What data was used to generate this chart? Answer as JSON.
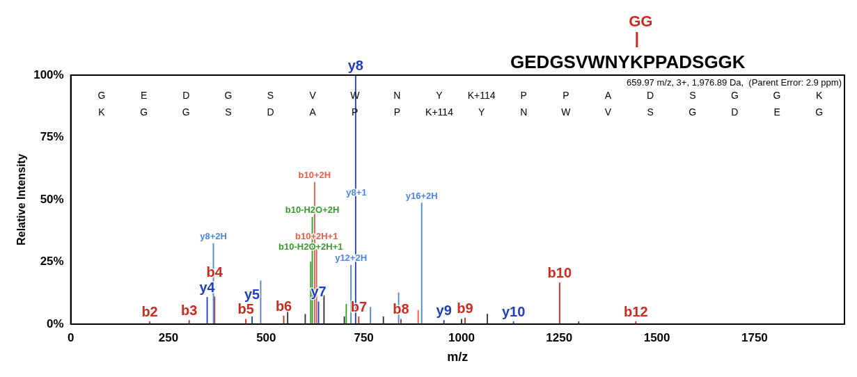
{
  "chart_data": {
    "type": "bar",
    "title": "GEDGSVWNYKPPADSGGK",
    "xlabel": "m/z",
    "ylabel": "Relative Intensity",
    "xlim": [
      0,
      1980
    ],
    "xticks": [
      0,
      250,
      500,
      750,
      1000,
      1250,
      1500,
      1750
    ],
    "ylim": [
      0,
      100
    ],
    "yticks": [
      {
        "value": 0,
        "label": "0%"
      },
      {
        "value": 25,
        "label": "25%"
      },
      {
        "value": 50,
        "label": "50%"
      },
      {
        "value": 75,
        "label": "75%"
      },
      {
        "value": 100,
        "label": "100%"
      }
    ],
    "grid": false,
    "legend": false,
    "series": [
      {
        "color": "#333333",
        "x": [
          555,
          600,
          648,
          700,
          800,
          1000,
          1066,
          1300
        ],
        "values": [
          5,
          4,
          11.5,
          3,
          3,
          2,
          4,
          1
        ]
      },
      {
        "color": "#3a9a2e",
        "x": [
          614,
          618,
          705
        ],
        "values": [
          25,
          43,
          8
        ]
      },
      {
        "color": "#f05a46",
        "x": [
          624,
          629,
          889
        ],
        "values": [
          57,
          30,
          5.6
        ]
      },
      {
        "color": "#4a86e8",
        "x": [
          365,
          486,
          717,
          731,
          767,
          839,
          898
        ],
        "values": [
          32.4,
          17.4,
          23.7,
          null,
          6.8,
          12.6,
          48.7
        ]
      },
      {
        "color": "#cc2a1e",
        "x": [
          202,
          303,
          368,
          448,
          545,
          737,
          845,
          1009,
          1251,
          1446
        ],
        "values": [
          1,
          1.5,
          11,
          2,
          3.3,
          3,
          2,
          2.5,
          16.6,
          1
        ]
      },
      {
        "color": "#1f3fbf",
        "x": [
          349,
          464,
          634,
          729,
          955,
          1133
        ],
        "values": [
          10.8,
          3,
          9,
          100,
          1.5,
          1
        ]
      }
    ],
    "annotations": [
      "GG",
      "659.97 m/z, 3+, 1,976.89 Da,  (Parent Error: 2.9 ppm)",
      "G E D G S V W N Y K+114 P P A D S G G K",
      "K G G S D A P P K+114 Y N W V S G D E G",
      {
        "text": "b2",
        "x": 202,
        "y": 1
      },
      {
        "text": "b3",
        "x": 303,
        "y": 1.5
      },
      {
        "text": "y4",
        "x": 349,
        "y": 10.8
      },
      {
        "text": "b4",
        "x": 368,
        "y": 11
      },
      {
        "text": "y8+2H",
        "x": 365,
        "y": 32.4
      },
      {
        "text": "b5",
        "x": 448,
        "y": 2
      },
      {
        "text": "y5",
        "x": 464,
        "y": 3
      },
      {
        "text": "b6",
        "x": 545,
        "y": 3.3
      },
      {
        "text": "b10-H2O+2H+1",
        "x": 614,
        "y": 25
      },
      {
        "text": "b10-H2O+2H",
        "x": 618,
        "y": 43
      },
      {
        "text": "b10+2H",
        "x": 624,
        "y": 57
      },
      {
        "text": "b10+2H+1",
        "x": 629,
        "y": 30
      },
      {
        "text": "y7",
        "x": 634,
        "y": 9
      },
      {
        "text": "y12+2H",
        "x": 717,
        "y": 23.7
      },
      {
        "text": "y8",
        "x": 729,
        "y": 100
      },
      {
        "text": "y8+1",
        "x": 731,
        "y": 50
      },
      {
        "text": "b7",
        "x": 737,
        "y": 3
      },
      {
        "text": "b8",
        "x": 845,
        "y": 2
      },
      {
        "text": "y16+2H",
        "x": 898,
        "y": 48.7
      },
      {
        "text": "y9",
        "x": 955,
        "y": 1.5
      },
      {
        "text": "b9",
        "x": 1009,
        "y": 2.5
      },
      {
        "text": "y10",
        "x": 1133,
        "y": 1
      },
      {
        "text": "b10",
        "x": 1251,
        "y": 16.6
      },
      {
        "text": "b12",
        "x": 1446,
        "y": 1
      }
    ]
  }
}
